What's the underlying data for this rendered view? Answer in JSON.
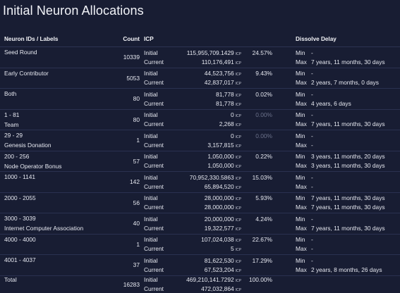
{
  "title": "Initial Neuron Allocations",
  "columns": {
    "label": "Neuron IDs / Labels",
    "count": "Count",
    "icp": "ICP",
    "dissolve": "Dissolve Delay"
  },
  "unit": "ICP",
  "rows": [
    {
      "id": "Seed Round",
      "label": "",
      "count": "10339",
      "initial": "115,955,709.1429",
      "current": "110,176,491",
      "pct": "24.57%",
      "pct_dim": false,
      "min": "Min",
      "min_val": "-",
      "max": "Max",
      "max_val": "7 years, 11 months, 30 days"
    },
    {
      "id": "Early Contributor",
      "label": "",
      "count": "5053",
      "initial": "44,523,756",
      "current": "42,837,017",
      "pct": "9.43%",
      "pct_dim": false,
      "min": "Min",
      "min_val": "-",
      "max": "Max",
      "max_val": "2 years, 7 months, 0 days"
    },
    {
      "id": "Both",
      "label": "",
      "count": "80",
      "initial": "81,778",
      "current": "81,778",
      "pct": "0.02%",
      "pct_dim": false,
      "min": "Min",
      "min_val": "-",
      "max": "Max",
      "max_val": "4 years, 6 days"
    },
    {
      "id": "1 - 81",
      "label": "Team",
      "count": "80",
      "initial": "0",
      "current": "2,268",
      "pct": "0.00%",
      "pct_dim": true,
      "min": "Min",
      "min_val": "-",
      "max": "Max",
      "max_val": "7 years, 11 months, 30 days"
    },
    {
      "id": "29 - 29",
      "label": "Genesis Donation",
      "count": "1",
      "initial": "0",
      "current": "3,157,815",
      "pct": "0.00%",
      "pct_dim": true,
      "min": "Min",
      "min_val": "-",
      "max": "Max",
      "max_val": "-"
    },
    {
      "id": "200 - 256",
      "label": "Node Operator Bonus",
      "count": "57",
      "initial": "1,050,000",
      "current": "1,050,000",
      "pct": "0.22%",
      "pct_dim": false,
      "min": "Min",
      "min_val": "3 years, 11 months, 20 days",
      "max": "Max",
      "max_val": "3 years, 11 months, 30 days"
    },
    {
      "id": "1000 - 1141",
      "label": "",
      "count": "142",
      "initial": "70,952,330.5863",
      "current": "65,894,520",
      "pct": "15.03%",
      "pct_dim": false,
      "min": "Min",
      "min_val": "-",
      "max": "Max",
      "max_val": "-"
    },
    {
      "id": "2000 - 2055",
      "label": "",
      "count": "56",
      "initial": "28,000,000",
      "current": "28,000,000",
      "pct": "5.93%",
      "pct_dim": false,
      "min": "Min",
      "min_val": "7 years, 11 months, 30 days",
      "max": "Max",
      "max_val": "7 years, 11 months, 30 days"
    },
    {
      "id": "3000 - 3039",
      "label": "Internet Computer Association",
      "count": "40",
      "initial": "20,000,000",
      "current": "19,322,577",
      "pct": "4.24%",
      "pct_dim": false,
      "min": "Min",
      "min_val": "-",
      "max": "Max",
      "max_val": "7 years, 11 months, 30 days"
    },
    {
      "id": "4000 - 4000",
      "label": "",
      "count": "1",
      "initial": "107,024,038",
      "current": "5",
      "pct": "22.67%",
      "pct_dim": false,
      "min": "Min",
      "min_val": "-",
      "max": "Max",
      "max_val": "-"
    },
    {
      "id": "4001 - 4037",
      "label": "",
      "count": "37",
      "initial": "81,622,530",
      "current": "67,523,204",
      "pct": "17.29%",
      "pct_dim": false,
      "min": "Min",
      "min_val": "-",
      "max": "Max",
      "max_val": "2 years, 8 months, 26 days"
    },
    {
      "id": "Total",
      "label": "",
      "count": "16283",
      "initial": "469,210,141.7292",
      "current": "472,032,864",
      "pct": "100.00%",
      "pct_dim": false,
      "min": "",
      "min_val": "",
      "max": "",
      "max_val": ""
    }
  ],
  "labels": {
    "initial": "Initial",
    "current": "Current"
  }
}
